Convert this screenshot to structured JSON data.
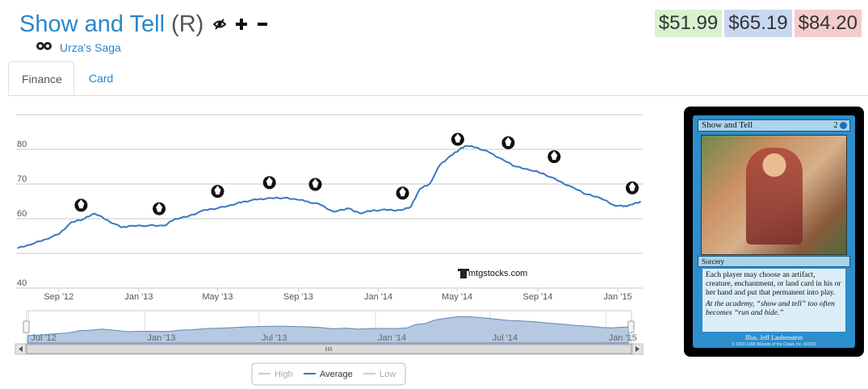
{
  "header": {
    "card_name": "Show and Tell",
    "rarity": "(R)",
    "set_name": "Urza's Saga",
    "icons": [
      "hide-icon",
      "plus-icon",
      "minus-icon",
      "set-symbol-icon"
    ]
  },
  "prices": {
    "low": "$51.99",
    "avg": "$65.19",
    "high": "$84.20"
  },
  "tabs": [
    {
      "label": "Finance"
    },
    {
      "label": "Card"
    }
  ],
  "chart_data": {
    "type": "line",
    "ylim": [
      40,
      90
    ],
    "ytick_labels": [
      "40",
      "60",
      "70",
      "80"
    ],
    "xtick_labels": [
      "Sep '12",
      "Jan '13",
      "May '13",
      "Sep '13",
      "Jan '14",
      "May '14",
      "Sep '14",
      "Jan '15"
    ],
    "watermark": "mtgstocks.com",
    "legend": [
      {
        "name": "High",
        "color": "#aaaaaa",
        "visible": false
      },
      {
        "name": "Average",
        "color": "#3a78c2",
        "visible": true
      },
      {
        "name": "Low",
        "color": "#aaaaaa",
        "visible": false
      }
    ],
    "legend_position": "bottom-center",
    "series": [
      {
        "name": "Average",
        "color": "#3a78c2",
        "x": [
          "2012-06-30",
          "2012-07-20",
          "2012-08-10",
          "2012-09-01",
          "2012-09-20",
          "2012-10-10",
          "2012-10-25",
          "2012-11-15",
          "2012-12-05",
          "2012-12-20",
          "2013-01-15",
          "2013-02-10",
          "2013-02-25",
          "2013-03-15",
          "2013-04-10",
          "2013-05-01",
          "2013-05-25",
          "2013-06-10",
          "2013-07-01",
          "2013-07-20",
          "2013-08-10",
          "2013-08-30",
          "2013-09-15",
          "2013-10-05",
          "2013-10-25",
          "2013-11-15",
          "2013-12-05",
          "2013-12-25",
          "2014-01-15",
          "2014-02-05",
          "2014-02-20",
          "2014-03-05",
          "2014-03-20",
          "2014-04-05",
          "2014-04-20",
          "2014-05-05",
          "2014-05-15",
          "2014-06-01",
          "2014-06-20",
          "2014-07-10",
          "2014-07-30",
          "2014-08-20",
          "2014-09-10",
          "2014-10-01",
          "2014-10-25",
          "2014-11-15",
          "2014-12-05",
          "2014-12-25",
          "2015-01-10",
          "2015-01-20",
          "2015-02-05"
        ],
        "y": [
          51.5,
          52.5,
          54,
          55.5,
          59,
          60,
          61.5,
          59.5,
          57.5,
          58,
          58,
          58,
          60,
          60.5,
          62.5,
          63,
          64,
          65,
          65.5,
          66,
          66,
          65.5,
          65,
          64,
          62,
          63,
          61.5,
          62.5,
          62.5,
          62.5,
          63.5,
          68.5,
          70,
          75.5,
          78,
          80,
          81,
          80.5,
          79,
          77,
          75,
          74,
          73,
          71,
          69,
          67,
          66,
          64,
          63.5,
          64,
          65
        ]
      }
    ],
    "navigator": {
      "xtick_labels": [
        "Jul '12",
        "Jan '13",
        "Jul '13",
        "Jan '14",
        "Jul '14",
        "Jan '15"
      ],
      "scrollbar_icon": "grip-icon"
    },
    "set_release_icons": [
      {
        "name": "return-to-ravnica-icon",
        "x": "2012-10-05"
      },
      {
        "name": "gatecrash-icon",
        "x": "2013-02-01"
      },
      {
        "name": "dragons-maze-icon",
        "x": "2013-05-01"
      },
      {
        "name": "magic-2014-icon",
        "x": "2013-07-19"
      },
      {
        "name": "theros-icon",
        "x": "2013-09-27"
      },
      {
        "name": "born-of-the-gods-icon",
        "x": "2014-02-07"
      },
      {
        "name": "journey-into-nyx-icon",
        "x": "2014-05-02"
      },
      {
        "name": "magic-2015-icon",
        "x": "2014-07-18"
      },
      {
        "name": "khans-of-tarkir-icon",
        "x": "2014-09-26"
      },
      {
        "name": "fate-reforged-icon",
        "x": "2015-01-23"
      }
    ]
  },
  "card_image": {
    "name": "Show and Tell",
    "cost": "2",
    "type_line": "Sorcery",
    "rules_text": "Each player may choose an artifact, creature, enchantment, or land card in his or her hand and put that permanent into play.",
    "flavor": "At the academy, “show and tell” too often becomes “run and hide.”",
    "illustrator": "Illus. Jeff Laubenstein",
    "copyright": "© 1993-1998 Wizards of the Coast, Inc. 69/350",
    "colors": {
      "frame": "#2c8ecb",
      "border": "#000000"
    }
  },
  "colors": {
    "accent": "#2a87c8",
    "low": "#d8f2cf",
    "avg": "#c9d8f2",
    "high": "#f3cccc"
  }
}
